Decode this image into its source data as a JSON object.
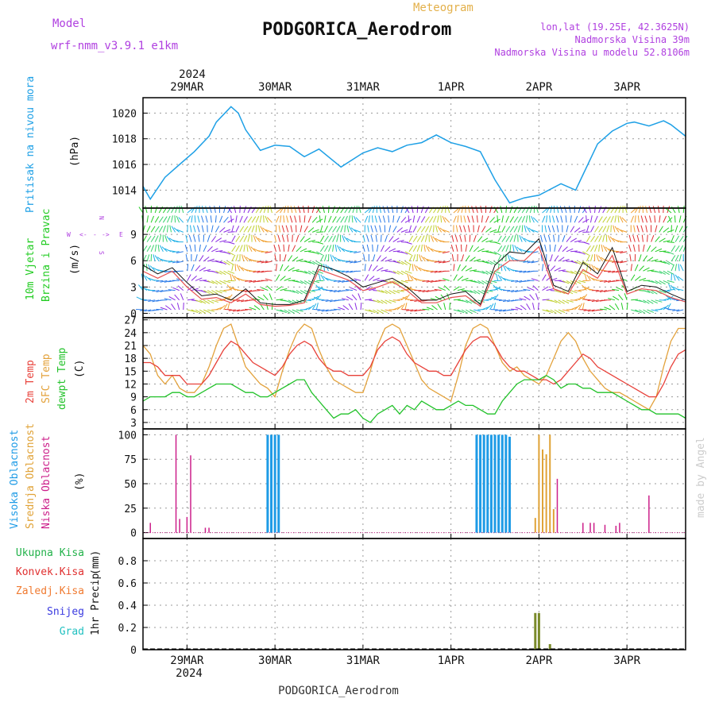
{
  "header": {
    "model_label": "Model",
    "model_name": "wrf-nmm_v3.9.1 e1km",
    "meteogram_label": "Meteogram",
    "station": "PODGORICA_Aerodrom",
    "lonlat": "lon,lat (19.25E, 42.3625N)",
    "elevation": "Nadmorska Visina 39m",
    "model_elevation": "Nadmorska Visina u modelu 52.8106m",
    "footer_station": "PODGORICA_Aerodrom",
    "credit": "made by Angel"
  },
  "colors": {
    "pressure": "#1ea0e6",
    "temp2m": "#e8413a",
    "sfc": "#e3a23c",
    "dewpt": "#22c22a",
    "high_cloud": "#1e9be6",
    "mid_cloud": "#e0a236",
    "low_cloud": "#cc1f8a",
    "precip_total": "#22b24a",
    "convective": "#e03030",
    "frozen": "#f07a30",
    "snow": "#3a3ae0",
    "graupel": "#20c0c0",
    "wind_label": "#22cc22",
    "wind_dir_label": "#b040e0"
  },
  "chart_data": [
    {
      "id": "pressure",
      "type": "line",
      "ylabel_left": "Pritisak na nivou mora",
      "unit": "(hPa)",
      "ylim": [
        1012.6,
        1021.2
      ],
      "yticks": [
        1014,
        1016,
        1018,
        1020
      ],
      "x_unit": "hours since 2024-03-28 12:00 UTC",
      "xlim": [
        0,
        148
      ],
      "series": [
        {
          "x": [
            0,
            2,
            6,
            10,
            14,
            18,
            20,
            24,
            26,
            28,
            32,
            36,
            40,
            44,
            48,
            54,
            60,
            64,
            68,
            72,
            76,
            80,
            84,
            88,
            92,
            96,
            100,
            104,
            108,
            114,
            118,
            120,
            124,
            128,
            132,
            134,
            138,
            142,
            144,
            148
          ],
          "y": [
            1014.3,
            1013.3,
            1015.0,
            1016.0,
            1017.0,
            1018.2,
            1019.3,
            1020.5,
            1020.0,
            1018.7,
            1017.1,
            1017.5,
            1017.4,
            1016.6,
            1017.2,
            1015.8,
            1016.9,
            1017.3,
            1017.0,
            1017.5,
            1017.7,
            1018.3,
            1017.7,
            1017.4,
            1017.0,
            1014.8,
            1013.0,
            1013.4,
            1013.6,
            1014.5,
            1014.0,
            1015.2,
            1017.6,
            1018.6,
            1019.2,
            1019.3,
            1019.0,
            1019.4,
            1019.1,
            1018.2
          ]
        }
      ]
    },
    {
      "id": "wind",
      "type": "line",
      "ylabel_left": "10m Vjetar",
      "ylabel_left2": "Brzina i Pravac",
      "unit": "(m/s)",
      "direction_legend": [
        "W",
        "<-",
        "-",
        "->",
        "E",
        "N",
        "S"
      ],
      "ylim": [
        -0.5,
        12
      ],
      "yticks": [
        0,
        3,
        6,
        9
      ],
      "x_unit": "hours since 2024-03-28 12:00 UTC",
      "xlim": [
        0,
        148
      ],
      "series": [
        {
          "name": "",
          "x": [
            0,
            4,
            8,
            12,
            16,
            20,
            24,
            28,
            32,
            36,
            40,
            44,
            48,
            52,
            56,
            60,
            64,
            68,
            72,
            76,
            80,
            84,
            88,
            92,
            96,
            100,
            104,
            108,
            112,
            116,
            120,
            124,
            128,
            132,
            136,
            140,
            144,
            148
          ],
          "y": [
            5.5,
            4.5,
            5.2,
            3.5,
            2.0,
            2.2,
            1.5,
            2.8,
            1.2,
            1.0,
            1.0,
            1.5,
            5.5,
            5.0,
            4.2,
            3.0,
            3.5,
            4.0,
            3.0,
            1.5,
            1.5,
            2.2,
            2.5,
            1.0,
            5.5,
            7.0,
            6.8,
            8.5,
            3.2,
            2.5,
            5.8,
            4.5,
            7.5,
            2.5,
            3.2,
            3.0,
            2.2,
            1.5
          ]
        },
        {
          "name": "",
          "x": [
            0,
            4,
            8,
            12,
            16,
            20,
            24,
            28,
            32,
            36,
            40,
            44,
            48,
            52,
            56,
            60,
            64,
            68,
            72,
            76,
            80,
            84,
            88,
            92,
            96,
            100,
            104,
            108,
            112,
            116,
            120,
            124,
            128,
            132,
            136,
            140,
            144,
            148
          ],
          "y": [
            4.8,
            4.0,
            4.8,
            3.0,
            1.6,
            1.8,
            1.2,
            2.2,
            1.0,
            0.8,
            0.9,
            1.2,
            5.0,
            4.4,
            3.8,
            2.6,
            3.0,
            3.6,
            2.6,
            1.2,
            1.2,
            1.8,
            2.0,
            0.8,
            4.8,
            6.0,
            6.0,
            7.6,
            2.8,
            2.2,
            5.0,
            4.0,
            6.6,
            2.2,
            2.8,
            2.6,
            1.8,
            1.3
          ]
        }
      ]
    },
    {
      "id": "temperature",
      "type": "line",
      "ylabel_left": "2m Temp",
      "ylabel_left2": "SFC Temp",
      "ylabel_left3": "dewpt Temp",
      "unit": "(C)",
      "ylim": [
        1.5,
        27.5
      ],
      "yticks": [
        3,
        6,
        9,
        12,
        15,
        18,
        21,
        24,
        27
      ],
      "x_unit": "hours since 2024-03-28 12:00 UTC",
      "xlim": [
        0,
        148
      ],
      "series": [
        {
          "name": "2m Temp",
          "x": [
            0,
            2,
            4,
            6,
            8,
            10,
            12,
            14,
            16,
            18,
            20,
            22,
            24,
            26,
            28,
            30,
            32,
            34,
            36,
            38,
            40,
            42,
            44,
            46,
            48,
            50,
            52,
            54,
            56,
            58,
            60,
            62,
            64,
            66,
            68,
            70,
            72,
            74,
            76,
            78,
            80,
            82,
            84,
            86,
            88,
            90,
            92,
            94,
            96,
            98,
            100,
            102,
            104,
            106,
            108,
            110,
            112,
            114,
            116,
            118,
            120,
            122,
            124,
            126,
            128,
            130,
            132,
            134,
            136,
            138,
            140,
            142,
            144,
            146,
            148
          ],
          "y": [
            17,
            17,
            16,
            14,
            14,
            14,
            12,
            12,
            12,
            14,
            17,
            20,
            22,
            21,
            19,
            17,
            16,
            15,
            14,
            16,
            19,
            21,
            22,
            21,
            18,
            16,
            15,
            15,
            14,
            14,
            14,
            16,
            20,
            22,
            23,
            22,
            19,
            17,
            16,
            15,
            15,
            14,
            14,
            17,
            20,
            22,
            23,
            23,
            21,
            18,
            16,
            15,
            15,
            14,
            13,
            13,
            12,
            13,
            15,
            17,
            19,
            18,
            16,
            15,
            14,
            13,
            12,
            11,
            10,
            9,
            9,
            12,
            16,
            19,
            20
          ]
        },
        {
          "name": "SFC Temp",
          "x": [
            0,
            2,
            4,
            6,
            8,
            10,
            12,
            14,
            16,
            18,
            20,
            22,
            24,
            26,
            28,
            30,
            32,
            34,
            36,
            38,
            40,
            42,
            44,
            46,
            48,
            50,
            52,
            54,
            56,
            58,
            60,
            62,
            64,
            66,
            68,
            70,
            72,
            74,
            76,
            78,
            80,
            82,
            84,
            86,
            88,
            90,
            92,
            94,
            96,
            98,
            100,
            102,
            104,
            106,
            108,
            110,
            112,
            114,
            116,
            118,
            120,
            122,
            124,
            126,
            128,
            130,
            132,
            134,
            136,
            138,
            140,
            142,
            144,
            146,
            148
          ],
          "y": [
            21,
            19,
            14,
            12,
            14,
            11,
            10,
            10,
            12,
            16,
            21,
            25,
            26,
            21,
            16,
            14,
            12,
            11,
            9,
            15,
            20,
            24,
            26,
            25,
            20,
            16,
            13,
            12,
            11,
            10,
            10,
            15,
            21,
            25,
            26,
            25,
            21,
            17,
            13,
            11,
            10,
            9,
            8,
            14,
            21,
            25,
            26,
            25,
            21,
            17,
            15,
            16,
            14,
            13,
            12,
            14,
            18,
            22,
            24,
            22,
            18,
            15,
            13,
            11,
            10,
            10,
            9,
            8,
            7,
            6,
            9,
            16,
            22,
            25,
            25
          ]
        },
        {
          "name": "dewpt Temp",
          "x": [
            0,
            2,
            4,
            6,
            8,
            10,
            12,
            14,
            16,
            18,
            20,
            22,
            24,
            26,
            28,
            30,
            32,
            34,
            36,
            38,
            40,
            42,
            44,
            46,
            48,
            50,
            52,
            54,
            56,
            58,
            60,
            62,
            64,
            66,
            68,
            70,
            72,
            74,
            76,
            78,
            80,
            82,
            84,
            86,
            88,
            90,
            92,
            94,
            96,
            98,
            100,
            102,
            104,
            106,
            108,
            110,
            112,
            114,
            116,
            118,
            120,
            122,
            124,
            126,
            128,
            130,
            132,
            134,
            136,
            138,
            140,
            142,
            144,
            146,
            148
          ],
          "y": [
            8,
            9,
            9,
            9,
            10,
            10,
            9,
            9,
            10,
            11,
            12,
            12,
            12,
            11,
            10,
            10,
            9,
            9,
            10,
            11,
            12,
            13,
            13,
            10,
            8,
            6,
            4,
            5,
            5,
            6,
            4,
            3,
            5,
            6,
            7,
            5,
            7,
            6,
            8,
            7,
            6,
            6,
            7,
            8,
            7,
            7,
            6,
            5,
            5,
            8,
            10,
            12,
            13,
            13,
            13,
            14,
            13,
            11,
            12,
            12,
            11,
            11,
            10,
            10,
            10,
            9,
            8,
            7,
            6,
            6,
            5,
            5,
            5,
            5,
            4
          ]
        }
      ]
    },
    {
      "id": "clouds",
      "type": "bar",
      "ylabel_left": "Visoka Oblacnost",
      "ylabel_left2": "Srednja Oblacnost",
      "ylabel_left3": "Niska Oblacnost",
      "unit": "(%)",
      "ylim": [
        -6,
        106
      ],
      "yticks": [
        0,
        25,
        50,
        75,
        100
      ],
      "x_unit": "hours since 2024-03-28 12:00 UTC",
      "xlim": [
        0,
        148
      ],
      "series": [
        {
          "name": "Visoka Oblacnost",
          "x": [
            34,
            35,
            36,
            37,
            91,
            92,
            93,
            94,
            95,
            96,
            97,
            98,
            99,
            100
          ],
          "y": [
            100,
            100,
            100,
            100,
            100,
            100,
            100,
            100,
            100,
            100,
            100,
            100,
            100,
            98
          ]
        },
        {
          "name": "Srednja Oblacnost",
          "x": [
            107,
            108,
            109,
            110,
            111,
            112
          ],
          "y": [
            15,
            100,
            85,
            80,
            100,
            24
          ]
        },
        {
          "name": "Niska Oblacnost",
          "x": [
            2,
            9,
            10,
            12,
            13,
            17,
            18,
            113,
            120,
            122,
            123,
            126,
            129,
            130,
            138
          ],
          "y": [
            10,
            100,
            14,
            16,
            79,
            5,
            5,
            55,
            10,
            10,
            10,
            8,
            7,
            10,
            38
          ]
        }
      ]
    },
    {
      "id": "precip",
      "type": "bar",
      "ylabel_left": "1hr Precip",
      "unit": "(mm)",
      "legend_items": [
        "Ukupna Kisa",
        "Konvek.Kisa",
        "Zaledj.Kisa",
        "Snijeg",
        "Grad"
      ],
      "ylim": [
        0,
        1.0
      ],
      "yticks": [
        0,
        0.2,
        0.4,
        0.6,
        0.8
      ],
      "x_unit": "hours since 2024-03-28 12:00 UTC",
      "xlim": [
        0,
        148
      ],
      "series": [
        {
          "name": "Ukupna Kisa",
          "x": [
            107,
            108,
            111
          ],
          "y": [
            0.33,
            0.33,
            0.05
          ]
        }
      ]
    }
  ],
  "x_axis": {
    "year_label": "2024",
    "dates": [
      {
        "label": "29MAR",
        "x": 12
      },
      {
        "label": "30MAR",
        "x": 36
      },
      {
        "label": "31MAR",
        "x": 60
      },
      {
        "label": "1APR",
        "x": 84
      },
      {
        "label": "2APR",
        "x": 108
      },
      {
        "label": "3APR",
        "x": 132
      }
    ]
  }
}
